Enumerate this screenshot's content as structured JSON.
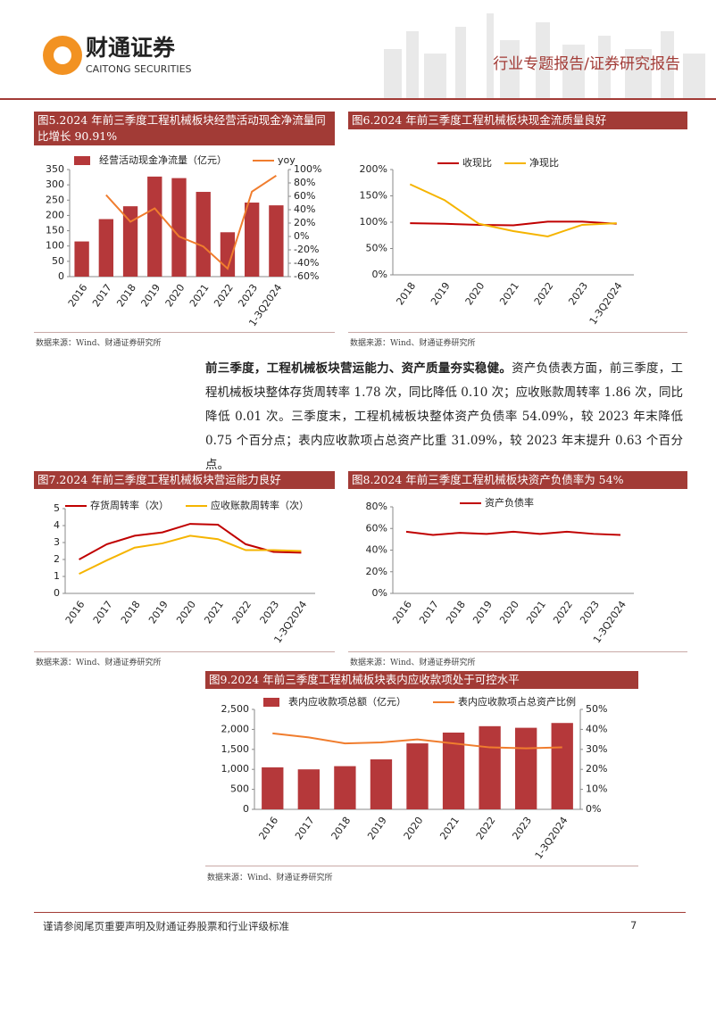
{
  "header": {
    "logo_cn": "财通证券",
    "logo_en": "CAITONG SECURITIES",
    "report_type": "行业专题报告/证券研究报告"
  },
  "chart_data": [
    {
      "type": "bar",
      "title": "图5.2024 年前三季度工程机械板块经营活动现金净流量同比增长 90.91%",
      "source": "数据来源：Wind、财通证券研究所",
      "categories": [
        "2016",
        "2017",
        "2018",
        "2019",
        "2020",
        "2021",
        "2022",
        "2023",
        "1-3Q2024"
      ],
      "series": [
        {
          "name": "经营活动现金净流量（亿元）",
          "type": "bar",
          "color": "#b5383a",
          "values": [
            115,
            188,
            230,
            327,
            322,
            277,
            145,
            242,
            233
          ]
        },
        {
          "name": "yoy",
          "type": "line",
          "axis": "y2",
          "color": "#f07d2e",
          "values": [
            null,
            62,
            22,
            42,
            0,
            -15,
            -48,
            67,
            90.91
          ]
        }
      ],
      "ylim": [
        0,
        350
      ],
      "yticks": [
        0,
        50,
        100,
        150,
        200,
        250,
        300,
        350
      ],
      "y2lim": [
        -60,
        100
      ],
      "y2ticks": [
        {
          "value": -60,
          "label": "-60%"
        },
        {
          "value": -40,
          "label": "-40%"
        },
        {
          "value": -20,
          "label": "-20%"
        },
        {
          "value": 0,
          "label": "0%"
        },
        {
          "value": 20,
          "label": "20%"
        },
        {
          "value": 40,
          "label": "40%"
        },
        {
          "value": 60,
          "label": "60%"
        },
        {
          "value": 80,
          "label": "80%"
        },
        {
          "value": 100,
          "label": "100%"
        }
      ]
    },
    {
      "type": "line",
      "title": "图6.2024 年前三季度工程机械板块现金流质量良好",
      "source": "数据来源：Wind、财通证券研究所",
      "categories": [
        "2018",
        "2019",
        "2020",
        "2021",
        "2022",
        "2023",
        "1-3Q2024"
      ],
      "series": [
        {
          "name": "收现比",
          "color": "#c00000",
          "values": [
            98,
            97,
            95,
            94,
            101,
            101,
            97
          ]
        },
        {
          "name": "净现比",
          "color": "#f5b400",
          "values": [
            172,
            142,
            97,
            83,
            73,
            95,
            98
          ]
        }
      ],
      "ylim": [
        0,
        200
      ],
      "yticks": [
        {
          "value": 0,
          "label": "0%"
        },
        {
          "value": 50,
          "label": "50%"
        },
        {
          "value": 100,
          "label": "100%"
        },
        {
          "value": 150,
          "label": "150%"
        },
        {
          "value": 200,
          "label": "200%"
        }
      ]
    },
    {
      "type": "line",
      "title": "图7.2024 年前三季度工程机械板块营运能力良好",
      "source": "数据来源：Wind、财通证券研究所",
      "categories": [
        "2016",
        "2017",
        "2018",
        "2019",
        "2020",
        "2021",
        "2022",
        "2023",
        "1-3Q2024"
      ],
      "series": [
        {
          "name": "存货周转率（次）",
          "color": "#c00000",
          "values": [
            2.0,
            2.9,
            3.4,
            3.6,
            4.1,
            4.05,
            2.9,
            2.45,
            2.4
          ]
        },
        {
          "name": "应收账款周转率（次）",
          "color": "#f5b400",
          "values": [
            1.15,
            1.95,
            2.7,
            2.95,
            3.4,
            3.2,
            2.55,
            2.55,
            2.5
          ]
        }
      ],
      "ylim": [
        0,
        5
      ],
      "yticks": [
        0,
        1,
        2,
        3,
        4,
        5
      ]
    },
    {
      "type": "line",
      "title": "图8.2024 年前三季度工程机械板块资产负债率为 54%",
      "source": "数据来源：Wind、财通证券研究所",
      "categories": [
        "2016",
        "2017",
        "2018",
        "2019",
        "2020",
        "2021",
        "2022",
        "2023",
        "1-3Q2024"
      ],
      "series": [
        {
          "name": "资产负债率",
          "color": "#c00000",
          "values": [
            57,
            54,
            56,
            55,
            57,
            55,
            57,
            55,
            54
          ]
        }
      ],
      "ylim": [
        0,
        80
      ],
      "yticks": [
        {
          "value": 0,
          "label": "0%"
        },
        {
          "value": 20,
          "label": "20%"
        },
        {
          "value": 40,
          "label": "40%"
        },
        {
          "value": 60,
          "label": "60%"
        },
        {
          "value": 80,
          "label": "80%"
        }
      ]
    },
    {
      "type": "bar",
      "title": "图9.2024 年前三季度工程机械板块表内应收款项处于可控水平",
      "source": "数据来源：Wind、财通证券研究所",
      "categories": [
        "2016",
        "2017",
        "2018",
        "2019",
        "2020",
        "2021",
        "2022",
        "2023",
        "1-3Q2024"
      ],
      "series": [
        {
          "name": "表内应收款项总额（亿元）",
          "type": "bar",
          "color": "#b5383a",
          "values": [
            1050,
            1000,
            1080,
            1250,
            1650,
            1920,
            2080,
            2040,
            2160
          ]
        },
        {
          "name": "表内应收款项占总资产比例",
          "type": "line",
          "axis": "y2",
          "color": "#f07d2e",
          "values": [
            38,
            36,
            33,
            33.5,
            35,
            33,
            31,
            30.5,
            31
          ]
        }
      ],
      "ylim": [
        0,
        2500
      ],
      "yticks": [
        0,
        {
          "value": 500,
          "label": "500"
        },
        {
          "value": 1000,
          "label": "1,000"
        },
        {
          "value": 1500,
          "label": "1,500"
        },
        {
          "value": 2000,
          "label": "2,000"
        },
        {
          "value": 2500,
          "label": "2,500"
        }
      ],
      "y2lim": [
        0,
        50
      ],
      "y2ticks": [
        {
          "value": 0,
          "label": "0%"
        },
        {
          "value": 10,
          "label": "10%"
        },
        {
          "value": 20,
          "label": "20%"
        },
        {
          "value": 30,
          "label": "30%"
        },
        {
          "value": 40,
          "label": "40%"
        },
        {
          "value": 50,
          "label": "50%"
        }
      ]
    }
  ],
  "paragraph": {
    "bold": "前三季度，工程机械板块营运能力、资产质量夯实稳健。",
    "text": "资产负债表方面，前三季度，工程机械板块整体存货周转率 1.78 次，同比降低 0.10 次；应收账款周转率 1.86 次，同比降低 0.01 次。三季度末，工程机械板块整体资产负债率 54.09%，较 2023 年末降低 0.75 个百分点；表内应收款项占总资产比重 31.09%，较 2023 年末提升 0.63 个百分点。"
  },
  "footer": {
    "disclaimer": "谨请参阅尾页重要声明及财通证券股票和行业评级标准",
    "page": "7"
  }
}
